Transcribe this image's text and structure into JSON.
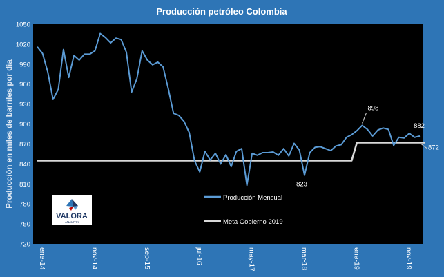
{
  "chart_data": {
    "type": "line",
    "title": "Producción petróleo Colombia",
    "ylabel": "Producción en miles de barriles por día",
    "xlabel": "",
    "ylim": [
      720,
      1050
    ],
    "yticks": [
      720,
      750,
      780,
      810,
      840,
      870,
      900,
      930,
      960,
      990,
      1020,
      1050
    ],
    "xtick_labels": [
      "ene-14",
      "nov-14",
      "sep-15",
      "jul-16",
      "may-17",
      "mar-18",
      "ene-19",
      "nov-19"
    ],
    "xtick_index": [
      0,
      10,
      20,
      30,
      40,
      50,
      60,
      70
    ],
    "grid": false,
    "legend_position": "bottom-center",
    "series": [
      {
        "name": "Producción Mensual",
        "color": "#5b9bd5",
        "values": [
          1016,
          1006,
          978,
          937,
          952,
          1012,
          970,
          1003,
          996,
          1005,
          1005,
          1010,
          1036,
          1030,
          1022,
          1029,
          1027,
          1008,
          948,
          968,
          1010,
          996,
          989,
          993,
          986,
          953,
          916,
          913,
          904,
          887,
          845,
          828,
          859,
          846,
          856,
          840,
          854,
          836,
          859,
          863,
          808,
          856,
          853,
          857,
          857,
          858,
          853,
          863,
          852,
          871,
          861,
          823,
          857,
          865,
          866,
          863,
          860,
          867,
          869,
          880,
          884,
          890,
          898,
          892,
          882,
          891,
          894,
          892,
          868,
          880,
          879,
          886,
          880,
          882
        ]
      },
      {
        "name": "Meta Gobierno 2019",
        "color": "#d9d9d9",
        "values": [
          845,
          845,
          845,
          845,
          845,
          845,
          845,
          845,
          845,
          845,
          845,
          845,
          845,
          845,
          845,
          845,
          845,
          845,
          845,
          845,
          845,
          845,
          845,
          845,
          845,
          845,
          845,
          845,
          845,
          845,
          845,
          845,
          845,
          845,
          845,
          845,
          845,
          845,
          845,
          845,
          845,
          845,
          845,
          845,
          845,
          845,
          845,
          845,
          845,
          845,
          845,
          845,
          845,
          845,
          845,
          845,
          845,
          845,
          845,
          845,
          845,
          872,
          872,
          872,
          872,
          872,
          872,
          872,
          872,
          872,
          872,
          872,
          872,
          872,
          872
        ]
      }
    ],
    "annotations": [
      {
        "text": "898",
        "series": 0,
        "index": 62
      },
      {
        "text": "882",
        "series": 0,
        "index": 73
      },
      {
        "text": "823",
        "series": 0,
        "index": 51
      },
      {
        "text": "872",
        "series": 1,
        "index": 73
      }
    ]
  },
  "logo": {
    "word": "VALORA",
    "tagline": "ANALITIK",
    "colors": [
      "#2e75b6",
      "#1f3864",
      "#c00000",
      "#5b9bd5"
    ]
  }
}
